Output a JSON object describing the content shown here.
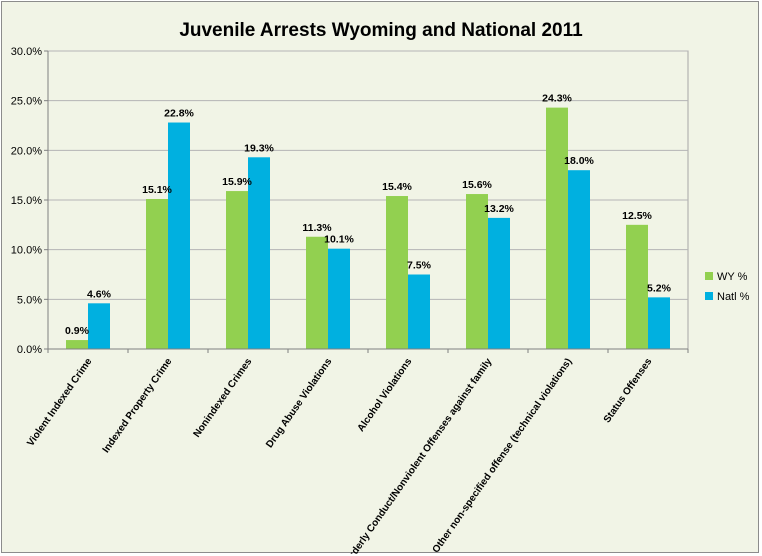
{
  "chart_data": {
    "type": "bar",
    "title": "Juvenile Arrests Wyoming and National 2011",
    "categories": [
      "Violent Indexed Crime",
      "Indexed Property Crime",
      "Nonindexed Crimes",
      "Drug Abuse Violations",
      "Alcohol Violations",
      "Disorderly Conduct/Nonviolent Offenses against family",
      "Other non-specified offense (technical violations)",
      "Status Offenses"
    ],
    "series": [
      {
        "name": "WY %",
        "color": "#92d050",
        "values": [
          0.9,
          15.1,
          15.9,
          11.3,
          15.4,
          15.6,
          24.3,
          12.5
        ],
        "labels": [
          "0.9%",
          "15.1%",
          "15.9%",
          "11.3%",
          "15.4%",
          "15.6%",
          "24.3%",
          "12.5%"
        ]
      },
      {
        "name": "Natl %",
        "color": "#00b0e0",
        "values": [
          4.6,
          22.8,
          19.3,
          10.1,
          7.5,
          13.2,
          18.0,
          5.2
        ],
        "labels": [
          "4.6%",
          "22.8%",
          "19.3%",
          "10.1%",
          "7.5%",
          "13.2%",
          "18.0%",
          "5.2%"
        ]
      }
    ],
    "y_ticks": [
      "0.0%",
      "5.0%",
      "10.0%",
      "15.0%",
      "20.0%",
      "25.0%",
      "30.0%"
    ],
    "ylim": [
      0,
      30
    ],
    "ystep": 5,
    "grid": true,
    "legend": "right",
    "plot_background": "#f1f4e6"
  }
}
